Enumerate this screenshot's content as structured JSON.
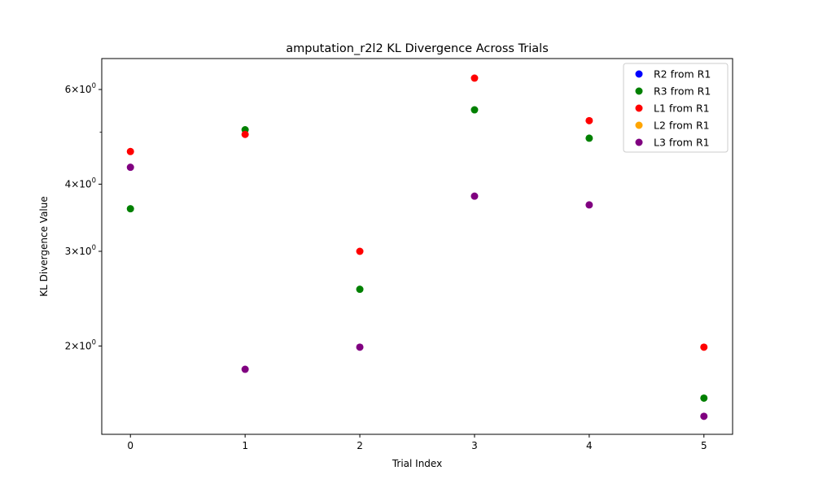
{
  "chart_data": {
    "type": "scatter",
    "title": "amputation_r2l2 KL Divergence Across Trials",
    "xlabel": "Trial Index",
    "ylabel": "KL Divergence Value",
    "yscale": "log",
    "xlim": [
      -0.25,
      5.25
    ],
    "ylim": [
      1.37,
      6.85
    ],
    "grid": false,
    "legend_position": "top-right",
    "x_ticks": [
      0,
      1,
      2,
      3,
      4,
      5
    ],
    "x_tick_labels": [
      "0",
      "1",
      "2",
      "3",
      "4",
      "5"
    ],
    "y_ticks": [
      {
        "value": 2,
        "base": "2",
        "exp": "0"
      },
      {
        "value": 3,
        "base": "3",
        "exp": "0"
      },
      {
        "value": 4,
        "base": "4",
        "exp": "0"
      },
      {
        "value": 6,
        "base": "6",
        "exp": "0"
      }
    ],
    "y_minor_ticks": [
      5
    ],
    "series": [
      {
        "name": "R2 from R1",
        "color": "#0000ff",
        "x": [],
        "y": []
      },
      {
        "name": "R3 from R1",
        "color": "#008000",
        "x": [
          0,
          1,
          2,
          3,
          4,
          5
        ],
        "y": [
          3.6,
          5.05,
          2.55,
          5.5,
          4.87,
          1.6
        ]
      },
      {
        "name": "L1 from R1",
        "color": "#ff0000",
        "x": [
          0,
          1,
          2,
          3,
          4,
          5
        ],
        "y": [
          4.6,
          4.95,
          3.0,
          6.3,
          5.25,
          1.99
        ]
      },
      {
        "name": "L2 from R1",
        "color": "#ffa500",
        "x": [],
        "y": []
      },
      {
        "name": "L3 from R1",
        "color": "#800080",
        "x": [
          0,
          1,
          2,
          3,
          4,
          5
        ],
        "y": [
          4.3,
          1.81,
          1.99,
          3.8,
          3.66,
          1.48
        ]
      }
    ]
  }
}
